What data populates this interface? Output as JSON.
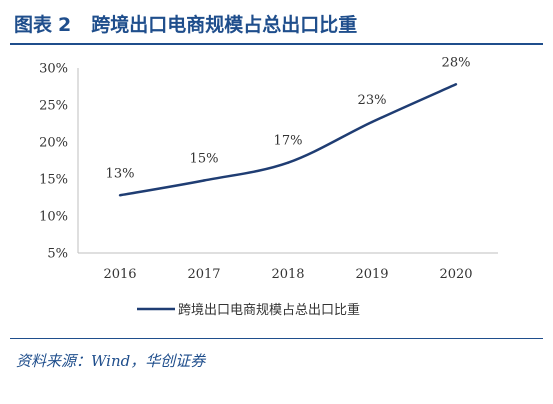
{
  "header": {
    "figure_label": "图表",
    "figure_number": "2",
    "title": "跨境出口电商规模占总出口比重"
  },
  "source": {
    "text": "资料来源：Wind，华创证券"
  },
  "colors": {
    "brand": "#1f4e8c",
    "series": "#1f3d73"
  },
  "chart_data": {
    "type": "line",
    "x": [
      "2016",
      "2017",
      "2018",
      "2019",
      "2020"
    ],
    "series": [
      {
        "name": "跨境出口电商规模占总出口比重",
        "values": [
          12.8,
          14.8,
          17.2,
          22.7,
          27.8
        ]
      }
    ],
    "data_labels": [
      "13%",
      "15%",
      "17%",
      "23%",
      "28%"
    ],
    "y_ticks": [
      {
        "value": 5,
        "label": "5%"
      },
      {
        "value": 10,
        "label": "10%"
      },
      {
        "value": 15,
        "label": "15%"
      },
      {
        "value": 20,
        "label": "20%"
      },
      {
        "value": 25,
        "label": "25%"
      },
      {
        "value": 30,
        "label": "30%"
      }
    ],
    "ylim": [
      5,
      30
    ],
    "grid": false,
    "legend_position": "bottom"
  }
}
